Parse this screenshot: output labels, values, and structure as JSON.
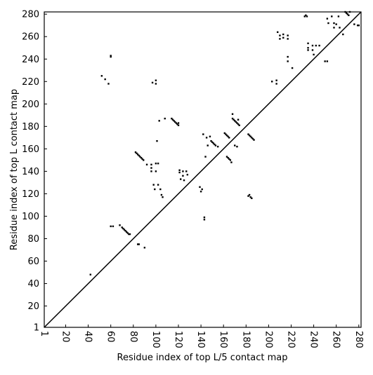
{
  "chart_data": {
    "type": "scatter",
    "xlabel": "Residue index of top L/5 contact map",
    "ylabel": "Residue index of top L contact map",
    "xlim": [
      1,
      282
    ],
    "ylim": [
      1,
      282
    ],
    "xticks": [
      1,
      20,
      40,
      60,
      80,
      100,
      120,
      140,
      160,
      180,
      200,
      220,
      240,
      260,
      280
    ],
    "yticks": [
      1,
      20,
      40,
      60,
      80,
      100,
      120,
      140,
      160,
      180,
      200,
      220,
      240,
      260,
      280
    ],
    "color": "#000000",
    "x": [
      42,
      52,
      55,
      58,
      60,
      60,
      60,
      62,
      68,
      70,
      71,
      72,
      73,
      74,
      75,
      76,
      77,
      84,
      85,
      90,
      82,
      83,
      84,
      85,
      86,
      87,
      88,
      89,
      92,
      96,
      96,
      100,
      102,
      100,
      96,
      98,
      102,
      99,
      104,
      105,
      106,
      97,
      100,
      100,
      101,
      103,
      108,
      114,
      115,
      116,
      117,
      118,
      119,
      120,
      120,
      121,
      121,
      124,
      124,
      127,
      128,
      122,
      125,
      139,
      140,
      141,
      143,
      143,
      142,
      145,
      146,
      148,
      149,
      150,
      151,
      152,
      153,
      155,
      144,
      161,
      162,
      163,
      164,
      165,
      163,
      164,
      165,
      166,
      167,
      168,
      168,
      169,
      170,
      171,
      172,
      173,
      174,
      173,
      170,
      172,
      182,
      183,
      184,
      185,
      186,
      187,
      182,
      183,
      184,
      185,
      203,
      207,
      207,
      208,
      210,
      210,
      213,
      213,
      217,
      217,
      217,
      217,
      221,
      232,
      233,
      234,
      235,
      235,
      235,
      239,
      239,
      240,
      242,
      245,
      250,
      252,
      252,
      253,
      256,
      258,
      258,
      260,
      263,
      262,
      266,
      268,
      269,
      270,
      271,
      272,
      276,
      279,
      280
    ],
    "values": [
      48,
      225,
      222,
      218,
      242,
      243,
      91,
      91,
      92,
      90,
      89,
      88,
      87,
      86,
      85,
      84,
      84,
      75,
      75,
      72,
      157,
      156,
      155,
      154,
      153,
      152,
      151,
      150,
      146,
      146,
      143,
      147,
      147,
      140,
      140,
      128,
      128,
      124,
      124,
      119,
      117,
      219,
      221,
      218,
      167,
      185,
      187,
      187,
      186,
      185,
      184,
      183,
      182,
      181,
      183,
      141,
      139,
      140,
      136,
      140,
      137,
      133,
      132,
      126,
      122,
      124,
      99,
      97,
      173,
      170,
      163,
      171,
      167,
      166,
      165,
      164,
      163,
      162,
      153,
      174,
      173,
      172,
      171,
      170,
      153,
      152,
      151,
      150,
      148,
      191,
      187,
      186,
      185,
      184,
      183,
      182,
      181,
      186,
      163,
      162,
      173,
      172,
      171,
      170,
      169,
      168,
      118,
      119,
      117,
      116,
      220,
      221,
      218,
      264,
      261,
      258,
      262,
      259,
      261,
      258,
      242,
      238,
      232,
      278,
      279,
      278,
      254,
      250,
      248,
      252,
      248,
      244,
      252,
      252,
      238,
      238,
      276,
      272,
      278,
      272,
      268,
      271,
      268,
      278,
      262,
      282,
      281,
      280,
      279,
      282,
      271,
      270,
      270
    ]
  }
}
